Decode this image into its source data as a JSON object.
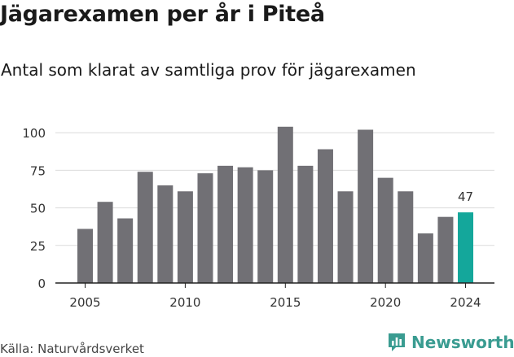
{
  "header": {
    "title": "Jägarexamen per år i Piteå",
    "subtitle": "Antal som klarat av samtliga prov för jägarexamen"
  },
  "footer": {
    "source": "Källa: Naturvårdsverket",
    "brand": "Newsworthy"
  },
  "colors": {
    "bar": "#717075",
    "highlight": "#14a79b",
    "brand": "#3a9c91"
  },
  "chart_data": {
    "type": "bar",
    "x": [
      2005,
      2006,
      2007,
      2008,
      2009,
      2010,
      2011,
      2012,
      2013,
      2014,
      2015,
      2016,
      2017,
      2018,
      2019,
      2020,
      2021,
      2022,
      2023,
      2024
    ],
    "values": [
      36,
      54,
      43,
      74,
      65,
      61,
      73,
      78,
      77,
      75,
      104,
      78,
      89,
      61,
      102,
      70,
      61,
      33,
      44,
      47
    ],
    "highlight_x": 2024,
    "data_labels": [
      {
        "x": 2024,
        "text": "47"
      }
    ],
    "xticks": [
      "2005",
      "2010",
      "2015",
      "2020",
      "2024"
    ],
    "yticks": [
      "0",
      "25",
      "50",
      "75",
      "100"
    ],
    "ylim": [
      0,
      110
    ],
    "grid": "horizontal"
  }
}
